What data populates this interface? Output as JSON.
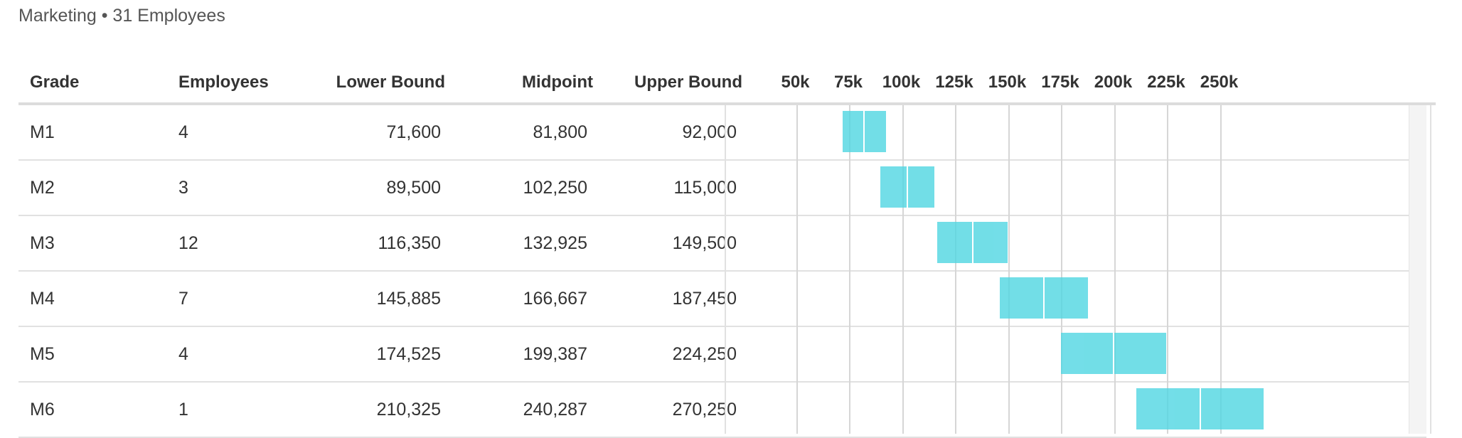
{
  "subtitle": "Marketing • 31 Employees",
  "columns": {
    "grade": "Grade",
    "employees": "Employees",
    "lower": "Lower Bound",
    "midpoint": "Midpoint",
    "upper": "Upper Bound"
  },
  "chart_data": {
    "type": "bar",
    "xlim": [
      25000,
      275000
    ],
    "ticks": [
      50000,
      75000,
      100000,
      125000,
      150000,
      175000,
      200000,
      225000,
      250000
    ],
    "tick_labels": [
      "50k",
      "75k",
      "100k",
      "125k",
      "150k",
      "175k",
      "200k",
      "225k",
      "250k"
    ],
    "color": "#50d6e2"
  },
  "rows": [
    {
      "grade": "M1",
      "employees": "4",
      "lower": "71,600",
      "midpoint": "81,800",
      "upper": "92,000",
      "lower_v": 71600,
      "mid_v": 81800,
      "upper_v": 92000
    },
    {
      "grade": "M2",
      "employees": "3",
      "lower": "89,500",
      "midpoint": "102,250",
      "upper": "115,000",
      "lower_v": 89500,
      "mid_v": 102250,
      "upper_v": 115000
    },
    {
      "grade": "M3",
      "employees": "12",
      "lower": "116,350",
      "midpoint": "132,925",
      "upper": "149,500",
      "lower_v": 116350,
      "mid_v": 132925,
      "upper_v": 149500
    },
    {
      "grade": "M4",
      "employees": "7",
      "lower": "145,885",
      "midpoint": "166,667",
      "upper": "187,450",
      "lower_v": 145885,
      "mid_v": 166667,
      "upper_v": 187450
    },
    {
      "grade": "M5",
      "employees": "4",
      "lower": "174,525",
      "midpoint": "199,387",
      "upper": "224,250",
      "lower_v": 174525,
      "mid_v": 199387,
      "upper_v": 224250
    },
    {
      "grade": "M6",
      "employees": "1",
      "lower": "210,325",
      "midpoint": "240,287",
      "upper": "270,250",
      "lower_v": 210325,
      "mid_v": 240287,
      "upper_v": 270250
    }
  ]
}
